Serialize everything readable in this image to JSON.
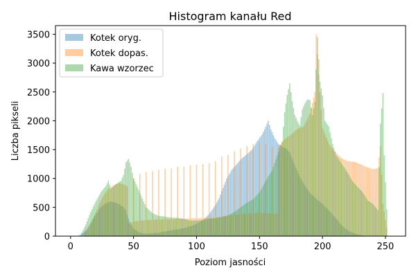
{
  "chart_data": {
    "type": "bar",
    "title": "Histogram kanału Red",
    "xlabel": "Poziom jasności",
    "ylabel": "Liczba pikseli",
    "xlim": [
      -12,
      266
    ],
    "ylim": [
      0,
      3650
    ],
    "xticks": [
      0,
      50,
      100,
      150,
      200,
      250
    ],
    "yticks": [
      0,
      500,
      1000,
      1500,
      2000,
      2500,
      3000,
      3500
    ],
    "grid": false,
    "legend_position": "top-left",
    "series": [
      {
        "name": "Kotek oryg.",
        "color": "#1f77b4",
        "opacity": 0.4,
        "points": [
          [
            6,
            10
          ],
          [
            8,
            30
          ],
          [
            10,
            60
          ],
          [
            12,
            100
          ],
          [
            14,
            160
          ],
          [
            16,
            230
          ],
          [
            18,
            310
          ],
          [
            20,
            380
          ],
          [
            22,
            440
          ],
          [
            24,
            500
          ],
          [
            26,
            540
          ],
          [
            28,
            570
          ],
          [
            30,
            590
          ],
          [
            32,
            600
          ],
          [
            34,
            590
          ],
          [
            36,
            580
          ],
          [
            38,
            560
          ],
          [
            40,
            530
          ],
          [
            42,
            500
          ],
          [
            44,
            440
          ],
          [
            46,
            300
          ],
          [
            48,
            200
          ],
          [
            50,
            130
          ],
          [
            55,
            60
          ],
          [
            60,
            40
          ],
          [
            70,
            60
          ],
          [
            80,
            100
          ],
          [
            90,
            140
          ],
          [
            95,
            170
          ],
          [
            100,
            210
          ],
          [
            105,
            280
          ],
          [
            110,
            380
          ],
          [
            115,
            540
          ],
          [
            118,
            660
          ],
          [
            120,
            780
          ],
          [
            124,
            1000
          ],
          [
            128,
            1150
          ],
          [
            132,
            1250
          ],
          [
            136,
            1350
          ],
          [
            140,
            1420
          ],
          [
            144,
            1500
          ],
          [
            148,
            1640
          ],
          [
            152,
            1760
          ],
          [
            155,
            1900
          ],
          [
            157,
            2000
          ],
          [
            159,
            1850
          ],
          [
            162,
            1700
          ],
          [
            165,
            1600
          ],
          [
            168,
            1550
          ],
          [
            171,
            1520
          ],
          [
            174,
            1450
          ],
          [
            178,
            1230
          ],
          [
            182,
            1030
          ],
          [
            186,
            880
          ],
          [
            190,
            750
          ],
          [
            195,
            650
          ],
          [
            200,
            560
          ],
          [
            205,
            450
          ],
          [
            210,
            330
          ],
          [
            215,
            190
          ],
          [
            220,
            100
          ],
          [
            225,
            50
          ],
          [
            230,
            20
          ],
          [
            235,
            0
          ]
        ]
      },
      {
        "name": "Kotek dopas.",
        "color": "#ff7f0e",
        "opacity": 0.4,
        "points": [
          [
            10,
            20
          ],
          [
            14,
            120
          ],
          [
            18,
            300
          ],
          [
            22,
            520
          ],
          [
            26,
            700
          ],
          [
            30,
            820
          ],
          [
            34,
            880
          ],
          [
            38,
            920
          ],
          [
            42,
            900
          ],
          [
            46,
            850
          ],
          [
            50,
            1000
          ],
          [
            55,
            1080
          ],
          [
            60,
            1110
          ],
          [
            65,
            1130
          ],
          [
            70,
            1150
          ],
          [
            75,
            1170
          ],
          [
            80,
            1170
          ],
          [
            85,
            1200
          ],
          [
            90,
            1200
          ],
          [
            95,
            1230
          ],
          [
            100,
            1240
          ],
          [
            105,
            1250
          ],
          [
            110,
            1260
          ],
          [
            115,
            1300
          ],
          [
            120,
            1380
          ],
          [
            125,
            1410
          ],
          [
            130,
            1470
          ],
          [
            135,
            1520
          ],
          [
            140,
            1560
          ],
          [
            145,
            1600
          ],
          [
            150,
            1620
          ],
          [
            155,
            1600
          ],
          [
            160,
            1550
          ],
          [
            165,
            1550
          ],
          [
            170,
            1680
          ],
          [
            175,
            1760
          ],
          [
            180,
            1860
          ],
          [
            185,
            1900
          ],
          [
            190,
            2120
          ],
          [
            194,
            2500
          ],
          [
            195,
            3500
          ],
          [
            197,
            2800
          ],
          [
            200,
            1880
          ],
          [
            205,
            1600
          ],
          [
            210,
            1460
          ],
          [
            215,
            1350
          ],
          [
            220,
            1300
          ],
          [
            225,
            1290
          ],
          [
            230,
            1250
          ],
          [
            235,
            1200
          ],
          [
            240,
            1160
          ],
          [
            244,
            1180
          ],
          [
            246,
            1560
          ],
          [
            248,
            560
          ],
          [
            252,
            0
          ]
        ]
      },
      {
        "name": "Kawa wzorzec",
        "color": "#2ca02c",
        "opacity": 0.4,
        "points": [
          [
            8,
            20
          ],
          [
            12,
            200
          ],
          [
            16,
            420
          ],
          [
            20,
            600
          ],
          [
            24,
            760
          ],
          [
            28,
            870
          ],
          [
            30,
            960
          ],
          [
            32,
            820
          ],
          [
            36,
            900
          ],
          [
            40,
            960
          ],
          [
            42,
            1060
          ],
          [
            44,
            1280
          ],
          [
            46,
            1340
          ],
          [
            48,
            1200
          ],
          [
            50,
            1000
          ],
          [
            52,
            900
          ],
          [
            54,
            800
          ],
          [
            56,
            700
          ],
          [
            58,
            600
          ],
          [
            60,
            500
          ],
          [
            65,
            400
          ],
          [
            70,
            350
          ],
          [
            75,
            340
          ],
          [
            80,
            320
          ],
          [
            85,
            320
          ],
          [
            90,
            300
          ],
          [
            95,
            270
          ],
          [
            100,
            270
          ],
          [
            105,
            280
          ],
          [
            110,
            300
          ],
          [
            115,
            310
          ],
          [
            120,
            330
          ],
          [
            125,
            360
          ],
          [
            130,
            420
          ],
          [
            135,
            500
          ],
          [
            140,
            580
          ],
          [
            145,
            640
          ],
          [
            150,
            760
          ],
          [
            155,
            960
          ],
          [
            160,
            1140
          ],
          [
            165,
            1460
          ],
          [
            168,
            1640
          ],
          [
            170,
            2150
          ],
          [
            172,
            2450
          ],
          [
            174,
            2650
          ],
          [
            176,
            2340
          ],
          [
            178,
            2100
          ],
          [
            180,
            2000
          ],
          [
            182,
            1920
          ],
          [
            184,
            2200
          ],
          [
            186,
            2300
          ],
          [
            188,
            2370
          ],
          [
            190,
            2360
          ],
          [
            192,
            2100
          ],
          [
            194,
            2330
          ],
          [
            196,
            3450
          ],
          [
            198,
            2680
          ],
          [
            200,
            2440
          ],
          [
            202,
            2000
          ],
          [
            205,
            1900
          ],
          [
            208,
            1600
          ],
          [
            211,
            1400
          ],
          [
            214,
            1300
          ],
          [
            217,
            1200
          ],
          [
            220,
            1100
          ],
          [
            224,
            950
          ],
          [
            228,
            850
          ],
          [
            232,
            760
          ],
          [
            236,
            620
          ],
          [
            240,
            560
          ],
          [
            244,
            450
          ],
          [
            246,
            1950
          ],
          [
            248,
            2480
          ],
          [
            249,
            1400
          ],
          [
            252,
            0
          ]
        ]
      }
    ]
  }
}
